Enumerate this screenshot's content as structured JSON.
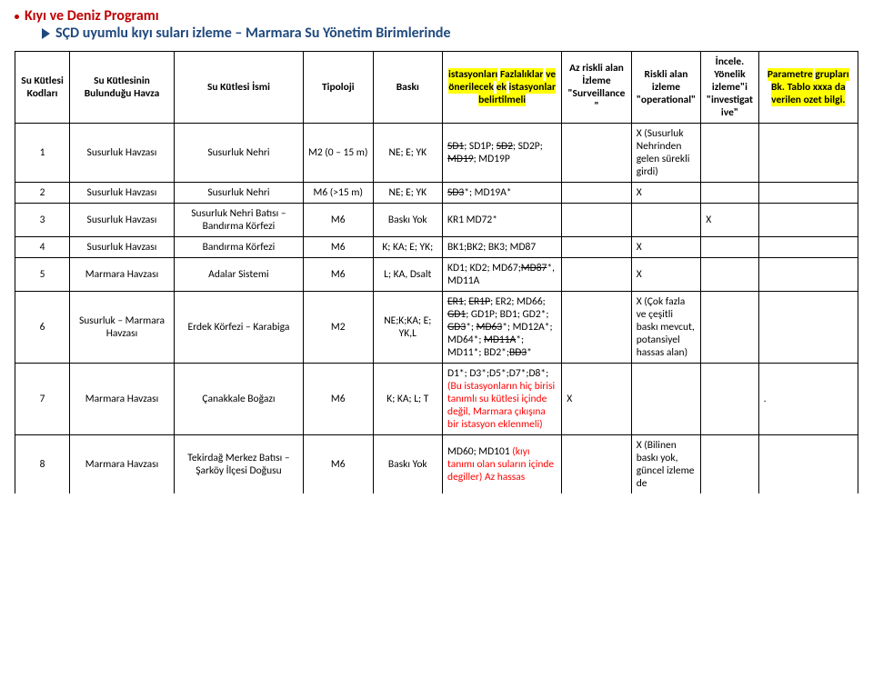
{
  "titles": {
    "line1": "Kıyı ve Deniz Programı",
    "line2": "SÇD uyumlu kıyı suları izleme – Marmara Su Yönetim Birimlerinde"
  },
  "headers": {
    "c0": "Su Kütlesi Kodları",
    "c1": "Su Kütlesinin Bulunduğu Havza",
    "c2": "Su Kütlesi İsmi",
    "c3": "Tipoloji",
    "c4": "Baskı",
    "c5_html": "<span class='hl'>istasyonları</span> <span class='hl'>Fazlalıklar</span> <span class='hl'>ve</span> <span class='hl'>önerilecek</span> <span class='hl'>ek</span> <span class='hl'>istasyonlar</span> <span class='hl'>belirtilmeli</span>",
    "c6": "Az riskli alan İzleme \"Surveillance\"",
    "c7": "Riskli alan izleme \"operational\"",
    "c8": "İncele. Yönelik izleme\"i \"investigative\"",
    "c9_html": "<span class='hl'>Parametre</span> <span class='hl'>grupları</span> <span class='hl'>Bk. Tablo xxxa da</span> <span class='hl'>verilen ozet bilgi.</span>"
  },
  "rows": [
    {
      "id": "1",
      "havza": "Susurluk Havzası",
      "isim": "Susurluk Nehri",
      "tipoloji": "M2 (0 – 15 m)",
      "baski": "NE; E; YK",
      "ist_html": "<span class='strike'>SD1</span>; SD1P; <span class='strike'>SD2</span>; SD2P; <span class='strike'>MD19</span>; MD19P",
      "c6": "",
      "c7": "X (Susurluk Nehrinden gelen sürekli girdi)",
      "c8": "",
      "c9": ""
    },
    {
      "id": "2",
      "havza": "Susurluk Havzası",
      "isim": "Susurluk Nehri",
      "tipoloji": "M6 (>15 m)",
      "baski": "NE; E; YK",
      "ist_html": "<span class='strike'>SD3</span>*; MD19A*",
      "c6": "",
      "c7": "X",
      "c8": "",
      "c9": ""
    },
    {
      "id": "3",
      "havza": "Susurluk Havzası",
      "isim": "Susurluk Nehri Batısı – Bandırma Körfezi",
      "tipoloji": "M6",
      "baski": "Baskı Yok",
      "ist_html": "KR1 MD72*",
      "c6": "",
      "c7": "",
      "c8": "X",
      "c9": ""
    },
    {
      "id": "4",
      "havza": "Susurluk Havzası",
      "isim": "Bandırma Körfezi",
      "tipoloji": "M6",
      "baski": "K; KA; E; YK;",
      "ist_html": "BK1;BK2; BK3; MD87",
      "c6": "",
      "c7": "X",
      "c8": "",
      "c9": ""
    },
    {
      "id": "5",
      "havza": "Marmara Havzası",
      "isim": "Adalar Sistemi",
      "tipoloji": "M6",
      "baski": "L; KA, Dsalt",
      "ist_html": "KD1; KD2; MD67;<span class='strike'>MD87</span>*, MD11A",
      "c6": "",
      "c7": "X",
      "c8": "",
      "c9": ""
    },
    {
      "id": "6",
      "havza": "Susurluk – Marmara Havzası",
      "isim": "Erdek Körfezi – Karabiga",
      "tipoloji": "M2",
      "baski": "NE;K;KA; E; YK,L",
      "ist_html": "<span class='strike'>ER1</span>; <span class='strike'>ER1P</span>; ER2; MD66; <span class='strike'>GD1</span>; GD1P; BD1; GD2*; <span class='strike'>GD3</span>*; <span class='strike'>MD63</span>*; MD12A*; MD64*; <span class='strike'>MD11A</span>*; MD11*; BD2*;<span class='strike'>BD3</span>*",
      "c6": "",
      "c7": "X (Çok fazla ve çeşitli baskı mevcut, potansiyel hassas alan)",
      "c8": "",
      "c9": ""
    },
    {
      "id": "7",
      "havza": "Marmara Havzası",
      "isim": "Çanakkale Boğazı",
      "tipoloji": "M6",
      "baski": "K; KA; L; T",
      "ist_html": "D1*; D3*;D5*;D7*;D8*; <span class='red'>(Bu istasyonların hiç birisi tanımlı su kütlesi içinde değil, Marmara çıkışına bir istasyon eklenmeli)</span>",
      "c6": "X",
      "c7": "",
      "c8": "",
      "c9": "."
    },
    {
      "id": "8",
      "havza": "Marmara Havzası",
      "isim": "Tekirdağ Merkez Batısı – Şarköy İlçesi Doğusu",
      "tipoloji": "M6",
      "baski": "Baskı Yok",
      "ist_html": "MD60; MD101 <span class='red'>(kıyı tanımı olan suların içinde degiller) Az hassas</span>",
      "c6": "",
      "c7": "X (Bilinen baskı yok, güncel izleme de",
      "c8": "",
      "c9": ""
    }
  ]
}
